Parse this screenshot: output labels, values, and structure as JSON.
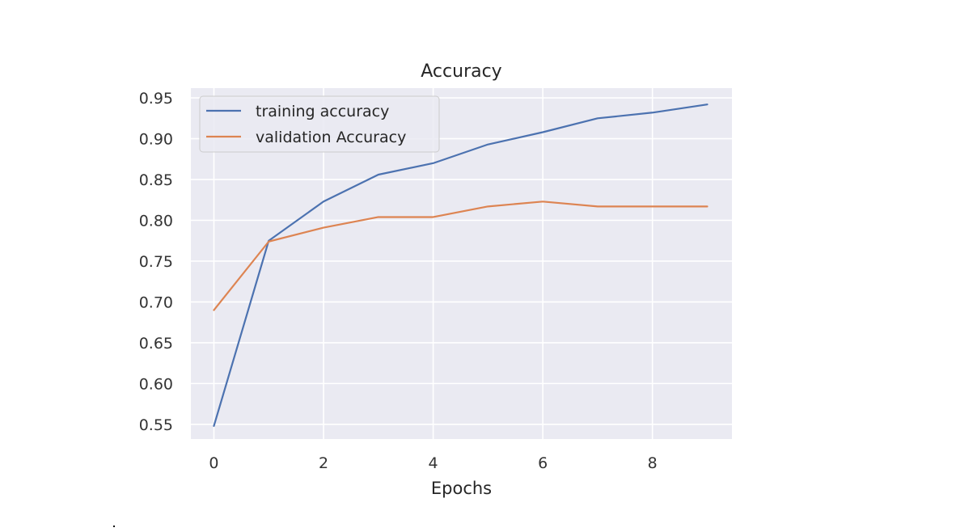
{
  "chart_data": {
    "type": "line",
    "title": "Accuracy",
    "xlabel": "Epochs",
    "ylabel": "",
    "x": [
      0,
      1,
      2,
      3,
      4,
      5,
      6,
      7,
      8,
      9
    ],
    "xlim": [
      -0.42,
      9.45
    ],
    "ylim": [
      0.532,
      0.962
    ],
    "xticks": [
      0,
      2,
      4,
      6,
      8
    ],
    "xtick_labels": [
      "0",
      "2",
      "4",
      "6",
      "8"
    ],
    "yticks": [
      0.55,
      0.6,
      0.65,
      0.7,
      0.75,
      0.8,
      0.85,
      0.9,
      0.95
    ],
    "ytick_labels": [
      "0.55",
      "0.60",
      "0.65",
      "0.70",
      "0.75",
      "0.80",
      "0.85",
      "0.90",
      "0.95"
    ],
    "grid": true,
    "legend_position": "top-left",
    "series": [
      {
        "name": "training accuracy",
        "color": "#4c72b0",
        "values": [
          0.548,
          0.775,
          0.823,
          0.856,
          0.87,
          0.893,
          0.908,
          0.925,
          0.932,
          0.942
        ]
      },
      {
        "name": "validation Accuracy",
        "color": "#dd8452",
        "values": [
          0.69,
          0.774,
          0.791,
          0.804,
          0.804,
          0.817,
          0.823,
          0.817,
          0.817,
          0.817
        ]
      }
    ],
    "colors": {
      "plot_background": "#eaeaf2",
      "grid": "#ffffff",
      "text": "#262626"
    }
  }
}
